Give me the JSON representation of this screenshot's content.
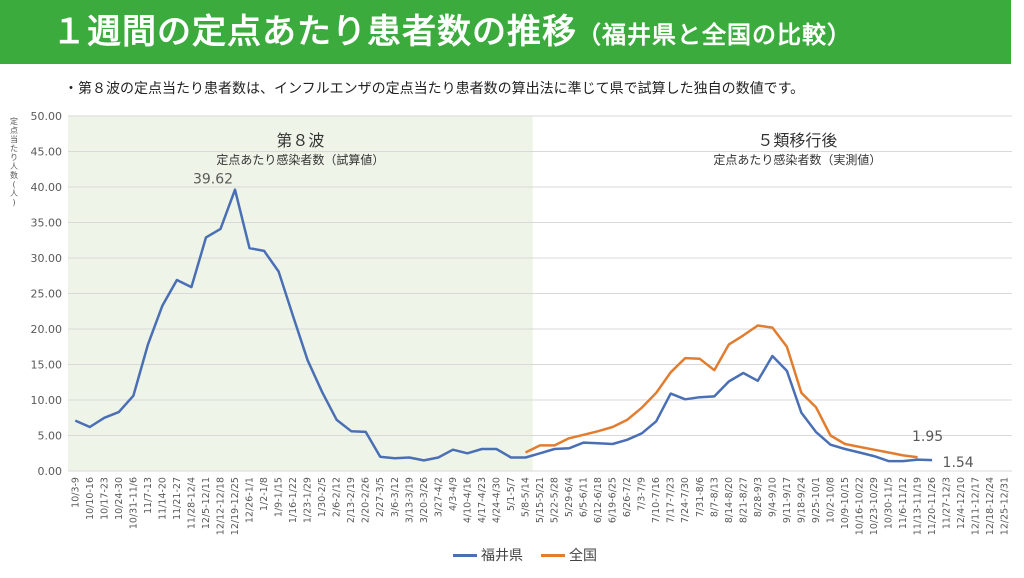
{
  "header": {
    "title": "１週間の定点あたり患者数の推移",
    "subtitle": "（福井県と全国の比較）"
  },
  "note": "・第８波の定点当たり患者数は、インフルエンザの定点当たり患者数の算出法に準じて県で試算した独自の数値です。",
  "colors": {
    "header_bg": "#3aab3c",
    "fukui": "#4a6fb5",
    "zenkoku": "#e27d30",
    "wave8_bg": "#eef5e8",
    "grid": "#d9d9d9"
  },
  "chart_data": {
    "type": "line",
    "ylabel": "定点当たり人数(人)",
    "ylim": [
      0,
      50
    ],
    "yticks": [
      "0.00",
      "5.00",
      "10.00",
      "15.00",
      "20.00",
      "25.00",
      "30.00",
      "35.00",
      "40.00",
      "45.00",
      "50.00"
    ],
    "grid": true,
    "legend_position": "bottom-center",
    "categories": [
      "10/3-9",
      "10/10-16",
      "10/17-23",
      "10/24-30",
      "10/31-11/6",
      "11/7-13",
      "11/14-20",
      "11/21-27",
      "11/28-12/4",
      "12/5-12/11",
      "12/12-12/18",
      "12/19-12/25",
      "12/26-1/1",
      "1/2-1/8",
      "1/9-1/15",
      "1/16-1/22",
      "1/23-1/29",
      "1/30-2/5",
      "2/6-2/12",
      "2/13-2/19",
      "2/20-2/26",
      "2/27-3/5",
      "3/6-3/12",
      "3/13-3/19",
      "3/20-3/26",
      "3/27-4/2",
      "4/3-4/9",
      "4/10-4/16",
      "4/17-4/23",
      "4/24-4/30",
      "5/1-5/7",
      "5/8-5/14",
      "5/15-5/21",
      "5/22-5/28",
      "5/29-6/4",
      "6/5-6/11",
      "6/12-6/18",
      "6/19-6/25",
      "6/26-7/2",
      "7/3-7/9",
      "7/10-7/16",
      "7/17-7/23",
      "7/24-7/30",
      "7/31-8/6",
      "8/7-8/13",
      "8/14-8/20",
      "8/21-8/27",
      "8/28-9/3",
      "9/4-9/10",
      "9/11-9/17",
      "9/18-9/24",
      "9/25-10/1",
      "10/2-10/8",
      "10/9-10/15",
      "10/16-10/22",
      "10/23-10/29",
      "10/30-11/5",
      "11/6-11/12",
      "11/13-11/19",
      "11/20-11/26",
      "11/27-12/3",
      "12/4-12/10",
      "12/11-12/17",
      "12/18-12/24",
      "12/25-12/31"
    ],
    "regions": [
      {
        "label": "第８波",
        "sublabel": "定点あたり感染者数（試算値）",
        "start_index": 0,
        "end_index": 31
      },
      {
        "label": "５類移行後",
        "sublabel": "定点あたり感染者数（実測値）",
        "start_index": 32,
        "end_index": 64
      }
    ],
    "series": [
      {
        "name": "福井県",
        "color": "#4a6fb5",
        "values": [
          7.1,
          6.2,
          7.5,
          8.3,
          10.6,
          17.8,
          23.3,
          26.9,
          25.9,
          32.9,
          34.1,
          39.62,
          31.4,
          31.0,
          28.1,
          21.8,
          15.6,
          11.1,
          7.2,
          5.6,
          5.5,
          2.0,
          1.8,
          1.9,
          1.5,
          1.9,
          3.0,
          2.5,
          3.1,
          3.1,
          1.9,
          1.9,
          2.5,
          3.1,
          3.2,
          4.0,
          3.9,
          3.8,
          4.4,
          5.3,
          7.0,
          10.9,
          10.1,
          10.4,
          10.5,
          12.6,
          13.8,
          12.7,
          16.2,
          14.1,
          8.2,
          5.5,
          3.7,
          3.1,
          2.6,
          2.1,
          1.4,
          1.4,
          1.6,
          1.54,
          null,
          null,
          null,
          null,
          null
        ]
      },
      {
        "name": "全国",
        "color": "#e27d30",
        "values": [
          null,
          null,
          null,
          null,
          null,
          null,
          null,
          null,
          null,
          null,
          null,
          null,
          null,
          null,
          null,
          null,
          null,
          null,
          null,
          null,
          null,
          null,
          null,
          null,
          null,
          null,
          null,
          null,
          null,
          null,
          null,
          2.6,
          3.6,
          3.6,
          4.6,
          5.1,
          5.6,
          6.2,
          7.2,
          8.9,
          11.0,
          13.9,
          15.9,
          15.8,
          14.2,
          17.8,
          19.1,
          20.5,
          20.2,
          17.5,
          11.0,
          9.0,
          5.0,
          3.8,
          3.4,
          3.0,
          2.6,
          2.2,
          1.95,
          null,
          null,
          null,
          null,
          null,
          null
        ]
      }
    ],
    "annotations": [
      {
        "text": "39.62",
        "series": 0,
        "index": 11
      },
      {
        "text": "1.95",
        "series": 1,
        "index": 58
      },
      {
        "text": "1.54",
        "series": 0,
        "index": 59
      }
    ]
  }
}
